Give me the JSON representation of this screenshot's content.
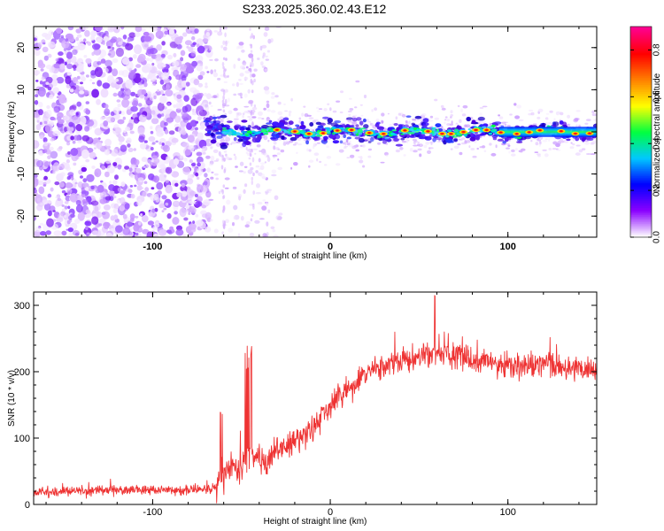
{
  "title": "S233.2025.360.02.43.E12",
  "chart_data": [
    {
      "type": "heatmap",
      "name": "spectrogram",
      "xlabel": "Height of straight line (km)",
      "ylabel": "Frequency (Hz)",
      "xlim": [
        -167,
        150
      ],
      "ylim": [
        -25,
        25
      ],
      "xticks": [
        -100,
        0,
        100
      ],
      "yticks": [
        -20,
        -10,
        0,
        10,
        20
      ],
      "xtick_labels": [
        "-100",
        "0",
        "100"
      ],
      "ytick_labels": [
        "-20",
        "-10",
        "0",
        "10",
        "20"
      ],
      "colorbar": {
        "label": "Normalized spectral amplitude",
        "range": [
          0.0,
          0.9
        ],
        "ticks": [
          0.0,
          0.2,
          0.4,
          0.6,
          0.8
        ],
        "tick_labels": [
          "0.0",
          "0.2",
          "0.4",
          "0.6",
          "0.8"
        ],
        "colors": [
          "#ffffff",
          "#8a00ff",
          "#0000ff",
          "#00c8ff",
          "#00ff40",
          "#ffff00",
          "#ff8000",
          "#ff0000",
          "#ff0090"
        ]
      },
      "features": {
        "noise_region_x": [
          -167,
          -68
        ],
        "signal_band_center_hz": 0,
        "signal_band_start_x": -70
      }
    },
    {
      "type": "line",
      "name": "snr",
      "xlabel": "Height of straight line (km)",
      "ylabel": "SNR (10 * v/v)",
      "xlim": [
        -167,
        150
      ],
      "ylim": [
        0,
        320
      ],
      "xticks": [
        -100,
        0,
        100
      ],
      "yticks": [
        0,
        100,
        200,
        300
      ],
      "xtick_labels": [
        "-100",
        "0",
        "100"
      ],
      "ytick_labels": [
        "0",
        "100",
        "200",
        "300"
      ],
      "line_color": "#ee3333",
      "series": [
        {
          "name": "SNR",
          "x": [
            -167,
            -150,
            -120,
            -100,
            -80,
            -64,
            -60,
            -55,
            -50,
            -45,
            -40,
            -35,
            -30,
            -20,
            -10,
            0,
            10,
            20,
            30,
            40,
            50,
            60,
            70,
            80,
            90,
            100,
            110,
            120,
            130,
            140,
            150
          ],
          "values": [
            18,
            20,
            22,
            22,
            22,
            24,
            45,
            60,
            55,
            85,
            70,
            60,
            80,
            95,
            115,
            150,
            170,
            195,
            210,
            215,
            220,
            230,
            225,
            220,
            215,
            210,
            205,
            210,
            205,
            205,
            200
          ]
        }
      ]
    }
  ]
}
